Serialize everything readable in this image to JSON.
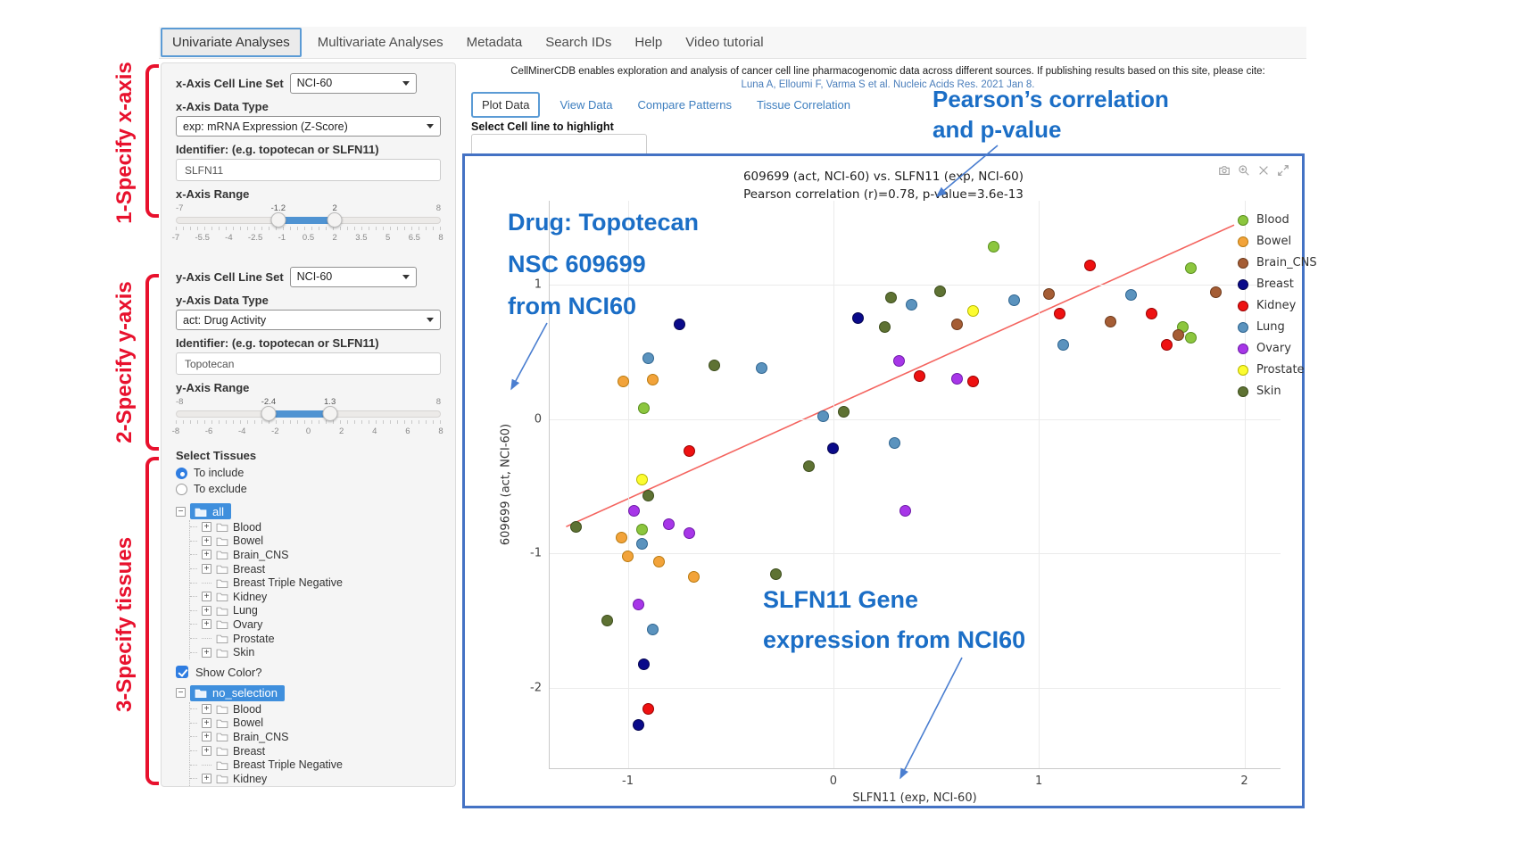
{
  "nav": {
    "items": [
      {
        "label": "Univariate Analyses",
        "active": true
      },
      {
        "label": "Multivariate Analyses",
        "active": false
      },
      {
        "label": "Metadata",
        "active": false
      },
      {
        "label": "Search IDs",
        "active": false
      },
      {
        "label": "Help",
        "active": false
      },
      {
        "label": "Video tutorial",
        "active": false
      }
    ]
  },
  "annotations": {
    "step1": "1-Specify x-axis",
    "step2": "2-Specify y-axis",
    "step3": "3-Specify tissues",
    "callout1_line1": "Pearson’s correlation",
    "callout1_line2": "and p-value",
    "callout2_line1": "Drug: Topotecan",
    "callout2_line2": "NSC 609699",
    "callout2_line3": "from NCI60",
    "callout3_line1": "SLFN11 Gene",
    "callout3_line2": "expression from NCI60",
    "accent_red": "#e8112d",
    "accent_blue": "#1b6ec6"
  },
  "sidebar": {
    "x_axis": {
      "cell_line_set_label": "x-Axis Cell Line Set",
      "cell_line_set_value": "NCI-60",
      "data_type_label": "x-Axis Data Type",
      "data_type_value": "exp: mRNA Expression (Z-Score)",
      "identifier_label": "Identifier: (e.g. topotecan or SLFN11)",
      "identifier_value": "SLFN11",
      "range_label": "x-Axis Range",
      "range_min": -7,
      "range_max": 8,
      "handle_low": -1.2,
      "handle_high": 2,
      "handle_low_label": "-1.2",
      "handle_high_label": "2",
      "ticks": [
        "-7",
        "-5.5",
        "-4",
        "-2.5",
        "-1",
        "0.5",
        "2",
        "3.5",
        "5",
        "6.5",
        "8"
      ]
    },
    "y_axis": {
      "cell_line_set_label": "y-Axis Cell Line Set",
      "cell_line_set_value": "NCI-60",
      "data_type_label": "y-Axis Data Type",
      "data_type_value": "act: Drug Activity",
      "identifier_label": "Identifier: (e.g. topotecan or SLFN11)",
      "identifier_value": "Topotecan",
      "range_label": "y-Axis Range",
      "range_min": -8,
      "range_max": 8,
      "handle_low": -2.4,
      "handle_high": 1.3,
      "handle_low_label": "-2.4",
      "handle_high_label": "1.3",
      "ticks": [
        "-8",
        "-6",
        "-4",
        "-2",
        "0",
        "2",
        "4",
        "6",
        "8"
      ]
    },
    "tissues": {
      "label": "Select Tissues",
      "radio_include": "To include",
      "radio_exclude": "To exclude",
      "include_selected": true,
      "tree1_root": "all",
      "tree2_root": "no_selection",
      "children": [
        "Blood",
        "Bowel",
        "Brain_CNS",
        "Breast",
        "Breast Triple Negative",
        "Kidney",
        "Lung",
        "Ovary",
        "Prostate",
        "Skin"
      ],
      "leaf_items": [
        "Breast Triple Negative",
        "Prostate"
      ],
      "show_color_label": "Show Color?",
      "show_color_checked": true
    },
    "icons": {
      "expander_expand": "+",
      "expander_collapse": "−"
    }
  },
  "main": {
    "citation_line1": "CellMinerCDB enables exploration and analysis of cancer cell line pharmacogenomic data across different sources. If publishing results based on this site, please cite:",
    "citation_link": "Luna A, Elloumi F, Varma S et al. Nucleic Acids Res. 2021 Jan 8.",
    "tabs": [
      "Plot Data",
      "View Data",
      "Compare Patterns",
      "Tissue Correlation"
    ],
    "active_tab": "Plot Data",
    "highlight_label": "Select Cell line to highlight",
    "highlight_value": ""
  },
  "chart_data": {
    "type": "scatter",
    "title_line1": "609699 (act, NCI-60) vs. SLFN11 (exp, NCI-60)",
    "title_line2": "Pearson correlation (r)=0.78, p-value=3.6e-13",
    "xlabel": "SLFN11 (exp, NCI-60)",
    "ylabel": "609699 (act, NCI-60)",
    "pearson_r": 0.78,
    "p_value": "3.6e-13",
    "xlim": [
      -1.38,
      2.18
    ],
    "ylim": [
      -2.6,
      1.62
    ],
    "x_ticks": [
      -1,
      0,
      1,
      2
    ],
    "y_ticks": [
      1,
      0,
      -1,
      -2
    ],
    "grid": true,
    "legend_position": "right",
    "regression_line": {
      "x": [
        -1.3,
        1.95
      ],
      "y": [
        -0.8,
        1.44
      ],
      "color": "#f4645f"
    },
    "series": [
      {
        "name": "Blood",
        "color": "#8cc63e",
        "stroke": "#5a8f1f",
        "points": [
          [
            -0.92,
            0.08
          ],
          [
            -0.93,
            -0.82
          ],
          [
            0.78,
            1.28
          ],
          [
            1.7,
            0.68
          ],
          [
            1.74,
            0.6
          ],
          [
            1.74,
            1.12
          ]
        ]
      },
      {
        "name": "Bowel",
        "color": "#f2a33a",
        "stroke": "#b97a10",
        "points": [
          [
            -1.02,
            0.28
          ],
          [
            -0.88,
            0.29
          ],
          [
            -1.03,
            -0.88
          ],
          [
            -1.0,
            -1.02
          ],
          [
            -0.85,
            -1.06
          ],
          [
            -0.68,
            -1.17
          ]
        ]
      },
      {
        "name": "Brain_CNS",
        "color": "#a55d35",
        "stroke": "#6e3a1c",
        "points": [
          [
            0.6,
            0.7
          ],
          [
            1.05,
            0.93
          ],
          [
            1.35,
            0.72
          ],
          [
            1.68,
            0.62
          ],
          [
            1.86,
            0.94
          ]
        ]
      },
      {
        "name": "Breast",
        "color": "#0a0a8a",
        "stroke": "#050550",
        "points": [
          [
            -0.75,
            0.7
          ],
          [
            0.12,
            0.75
          ],
          [
            0.0,
            -0.22
          ],
          [
            -0.92,
            -1.82
          ],
          [
            -0.95,
            -2.27
          ]
        ]
      },
      {
        "name": "Kidney",
        "color": "#ee1111",
        "stroke": "#990000",
        "points": [
          [
            -0.7,
            -0.24
          ],
          [
            0.42,
            0.32
          ],
          [
            0.68,
            0.28
          ],
          [
            1.1,
            0.78
          ],
          [
            1.25,
            1.14
          ],
          [
            1.55,
            0.78
          ],
          [
            1.62,
            0.55
          ],
          [
            -0.9,
            -2.15
          ]
        ]
      },
      {
        "name": "Lung",
        "color": "#5b93be",
        "stroke": "#2f6590",
        "points": [
          [
            -0.9,
            0.45
          ],
          [
            -0.35,
            0.38
          ],
          [
            -0.05,
            0.02
          ],
          [
            0.3,
            -0.18
          ],
          [
            0.38,
            0.85
          ],
          [
            0.88,
            0.88
          ],
          [
            1.45,
            0.92
          ],
          [
            1.12,
            0.55
          ],
          [
            -0.93,
            -0.93
          ],
          [
            -0.88,
            -1.56
          ]
        ]
      },
      {
        "name": "Ovary",
        "color": "#a736e8",
        "stroke": "#6d1ba8",
        "points": [
          [
            -0.97,
            -0.68
          ],
          [
            -0.8,
            -0.78
          ],
          [
            -0.7,
            -0.85
          ],
          [
            -0.95,
            -1.38
          ],
          [
            0.35,
            -0.68
          ],
          [
            0.32,
            0.43
          ],
          [
            0.6,
            0.3
          ]
        ]
      },
      {
        "name": "Prostate",
        "color": "#fcfc30",
        "stroke": "#b8b800",
        "points": [
          [
            -0.93,
            -0.45
          ],
          [
            0.68,
            0.8
          ]
        ]
      },
      {
        "name": "Skin",
        "color": "#5e7233",
        "stroke": "#3d4d1c",
        "points": [
          [
            -0.58,
            0.4
          ],
          [
            0.05,
            0.05
          ],
          [
            -0.12,
            -0.35
          ],
          [
            0.28,
            0.9
          ],
          [
            0.25,
            0.68
          ],
          [
            0.52,
            0.95
          ],
          [
            -0.9,
            -0.57
          ],
          [
            -1.25,
            -0.8
          ],
          [
            -0.28,
            -1.15
          ],
          [
            -1.1,
            -1.5
          ]
        ]
      }
    ]
  },
  "modebar": [
    "camera-icon",
    "zoom-in-icon",
    "close-icon",
    "expand-icon"
  ]
}
